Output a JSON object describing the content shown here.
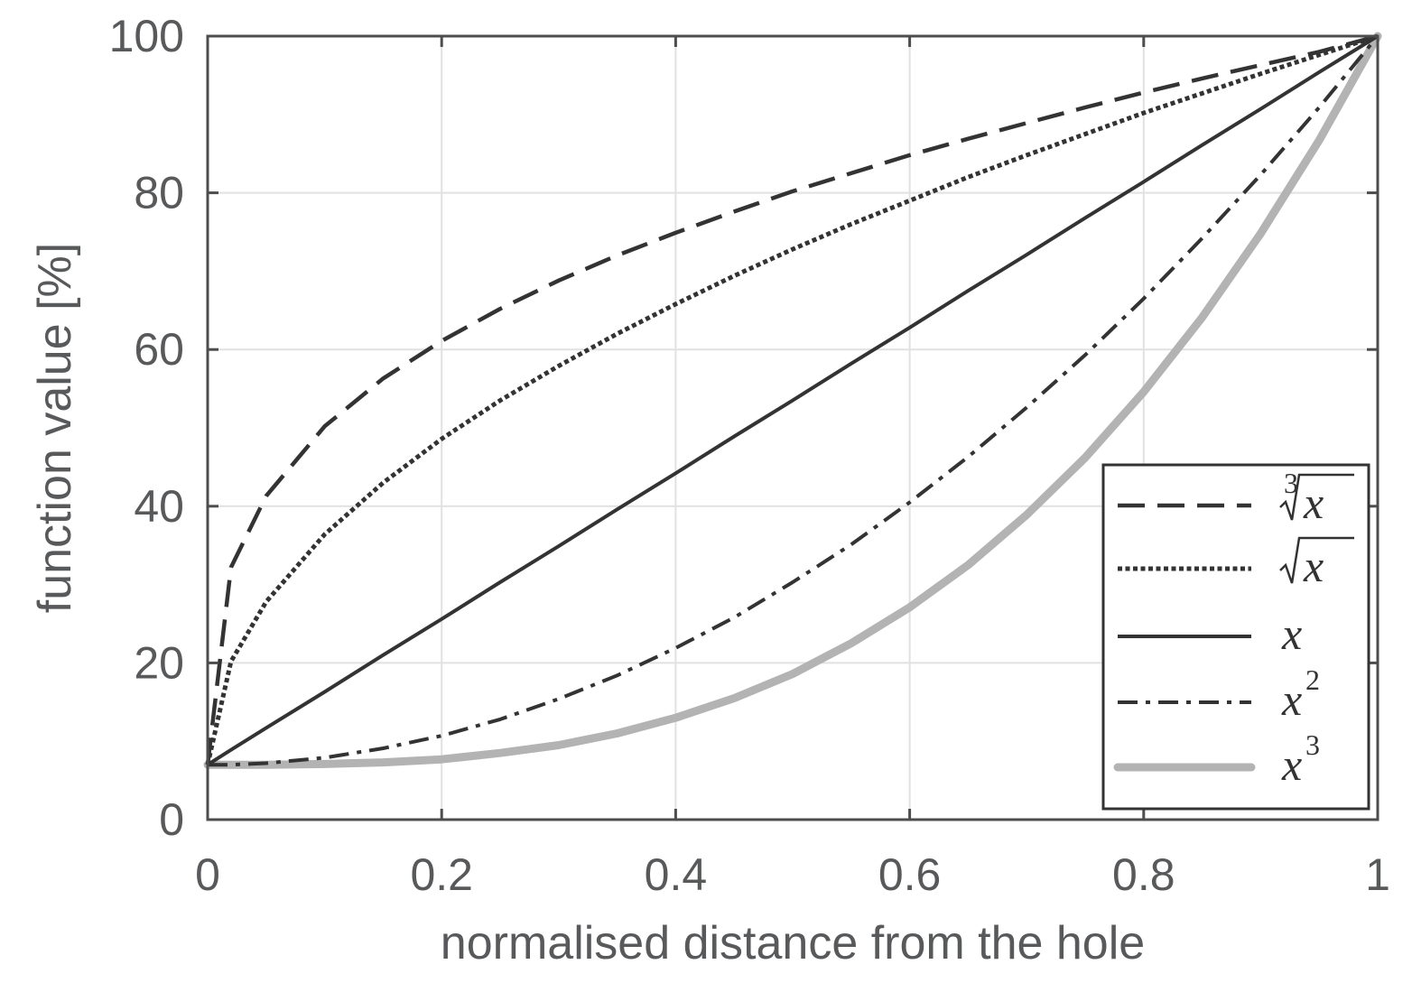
{
  "chart_data": {
    "type": "line",
    "title": "",
    "xlabel": "normalised distance from the hole",
    "ylabel": "function value [%]",
    "xlim": [
      0,
      1
    ],
    "ylim": [
      0,
      100
    ],
    "xticks": [
      0,
      0.2,
      0.4,
      0.6,
      0.8,
      1
    ],
    "xtick_labels": [
      "0",
      "0.2",
      "0.4",
      "0.6",
      "0.8",
      "1"
    ],
    "yticks": [
      0,
      20,
      40,
      60,
      80,
      100
    ],
    "ytick_labels": [
      "0",
      "20",
      "40",
      "60",
      "80",
      "100"
    ],
    "grid": true,
    "legend_position": "bottom-right",
    "base_value": 7,
    "x": [
      0,
      0.02,
      0.05,
      0.1,
      0.15,
      0.2,
      0.25,
      0.3,
      0.35,
      0.4,
      0.45,
      0.5,
      0.55,
      0.6,
      0.65,
      0.7,
      0.75,
      0.8,
      0.85,
      0.9,
      0.95,
      1
    ],
    "series": [
      {
        "name": "cbrt",
        "label": "x",
        "root_index": "3",
        "style": "dashed",
        "values": [
          7,
          32.2,
          41.3,
          50.2,
          56.3,
          61.1,
          65.2,
          68.8,
          72.0,
          74.9,
          77.6,
          80.2,
          82.5,
          84.8,
          86.9,
          88.9,
          90.9,
          92.8,
          94.6,
          96.3,
          98.0,
          100
        ]
      },
      {
        "name": "sqrt",
        "label": "x",
        "root_index": "",
        "style": "dotted",
        "values": [
          7,
          20.2,
          27.8,
          36.4,
          43.0,
          48.6,
          53.5,
          57.9,
          62.0,
          65.8,
          69.4,
          72.8,
          76.0,
          79.0,
          82.0,
          84.8,
          87.5,
          90.2,
          92.7,
          95.2,
          97.6,
          100
        ]
      },
      {
        "name": "linear",
        "label": "x",
        "style": "solid",
        "values": [
          7,
          8.9,
          11.7,
          16.3,
          21.0,
          25.6,
          30.3,
          34.9,
          39.6,
          44.2,
          48.9,
          53.5,
          58.2,
          62.8,
          67.5,
          72.1,
          76.8,
          81.4,
          86.1,
          90.7,
          95.4,
          100
        ]
      },
      {
        "name": "square",
        "label": "x",
        "superscript": "2",
        "style": "dashdot",
        "values": [
          7,
          7.0,
          7.2,
          7.9,
          9.1,
          10.7,
          12.8,
          15.4,
          18.4,
          21.9,
          25.8,
          30.3,
          35.1,
          40.5,
          46.3,
          52.6,
          59.3,
          66.5,
          74.2,
          82.3,
          90.9,
          100
        ]
      },
      {
        "name": "cube",
        "label": "x",
        "superscript": "3",
        "style": "thick-gray",
        "values": [
          7,
          7.0,
          7.0,
          7.1,
          7.3,
          7.7,
          8.5,
          9.5,
          11.0,
          13.0,
          15.5,
          18.6,
          22.5,
          27.1,
          32.5,
          38.9,
          46.2,
          54.6,
          64.1,
          74.8,
          86.7,
          100
        ]
      }
    ]
  }
}
